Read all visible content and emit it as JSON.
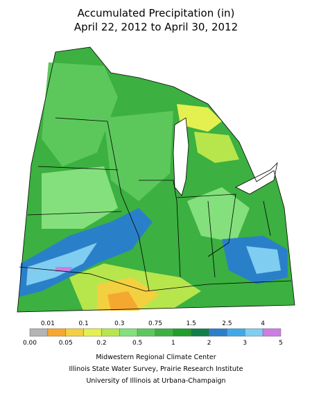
{
  "header": {
    "title": "Accumulated Precipitation (in)",
    "subtitle": "April 22, 2012 to April 30, 2012"
  },
  "legend": {
    "labels": [
      "0.00",
      "0.01",
      "0.05",
      "0.1",
      "0.2",
      "0.3",
      "0.5",
      "0.75",
      "1",
      "1.5",
      "2",
      "2.5",
      "3",
      "4",
      "5"
    ],
    "colors": [
      "#b4b4b4",
      "#f5a830",
      "#f2d040",
      "#e4f050",
      "#b6e64c",
      "#84e07c",
      "#5cc85c",
      "#3cb040",
      "#1e9e2a",
      "#108048",
      "#2a80c8",
      "#40a8e6",
      "#80cdf2",
      "#cc7ee2"
    ]
  },
  "credits": [
    "Midwestern Regional Climate Center",
    "Illinois State Water Survey, Prairie Research Institute",
    "University of Illinois at Urbana-Champaign"
  ]
}
